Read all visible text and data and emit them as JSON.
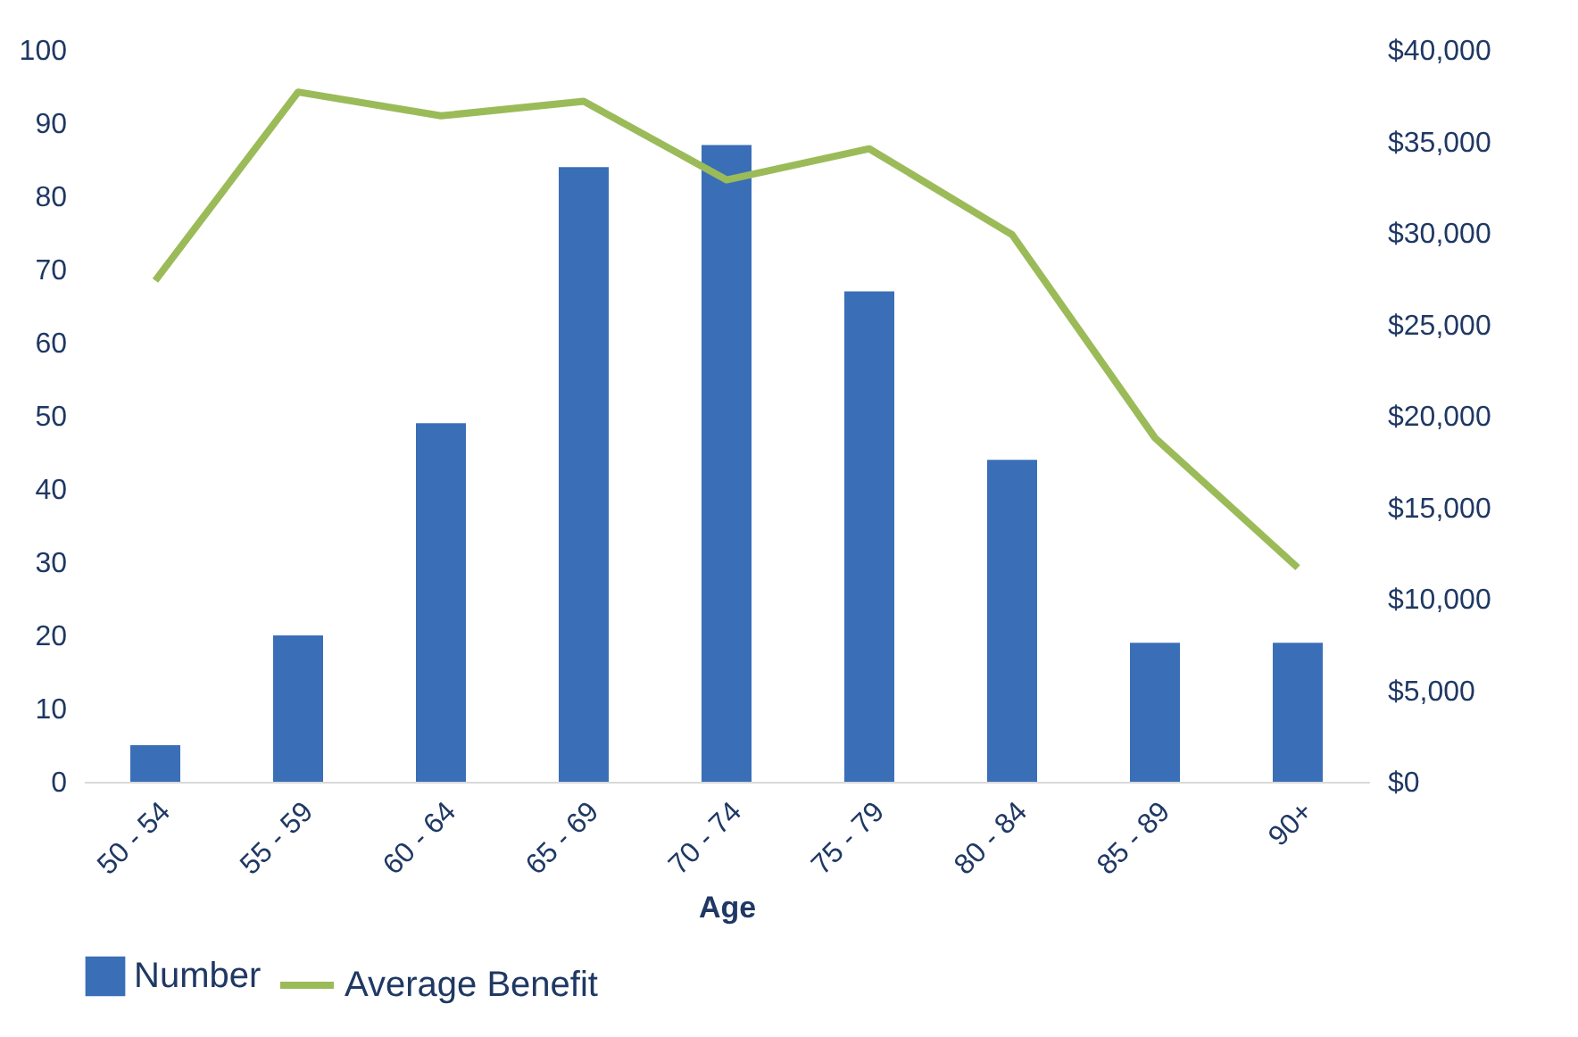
{
  "chart_data": {
    "type": "bar",
    "xlabel": "Age",
    "categories": [
      "50 - 54",
      "55 - 59",
      "60 - 64",
      "65 - 69",
      "70 - 74",
      "75 - 79",
      "80 - 84",
      "85 - 89",
      "90+"
    ],
    "series": [
      {
        "name": "Number",
        "color": "#3a6fb8",
        "values": [
          5,
          20,
          49,
          84,
          87,
          67,
          44,
          19,
          19
        ]
      },
      {
        "name": "Average Benefit",
        "type": "line",
        "axis": "y2",
        "color": "#9bbb59",
        "values": [
          27400,
          37700,
          36400,
          37200,
          32900,
          34600,
          29900,
          18800,
          11700
        ]
      }
    ],
    "ylim": [
      0,
      100
    ],
    "yticks": [
      0,
      10,
      20,
      30,
      40,
      50,
      60,
      70,
      80,
      90,
      100
    ],
    "y2lim": [
      0,
      40000
    ],
    "y2ticks": [
      {
        "value": 0,
        "label": "$0"
      },
      {
        "value": 5000,
        "label": "$5,000"
      },
      {
        "value": 10000,
        "label": "$10,000"
      },
      {
        "value": 15000,
        "label": "$15,000"
      },
      {
        "value": 20000,
        "label": "$20,000"
      },
      {
        "value": 25000,
        "label": "$25,000"
      },
      {
        "value": 30000,
        "label": "$30,000"
      },
      {
        "value": 35000,
        "label": "$35,000"
      },
      {
        "value": 40000,
        "label": "$40,000"
      }
    ],
    "grid": false,
    "legend": "bottom",
    "marker": "none",
    "line_style": "solid"
  }
}
